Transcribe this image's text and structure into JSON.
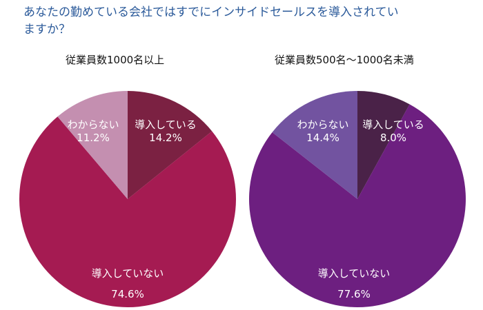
{
  "title": "あなたの勤めている会社ではすでにインサイドセールスを導入されていますか？",
  "chart_data": [
    {
      "type": "pie",
      "title": "従業員数1000名以上",
      "slices": [
        {
          "label": "導入している",
          "value": 14.2,
          "display": "14.2%",
          "color": "#7b2142"
        },
        {
          "label": "導入していない",
          "value": 74.6,
          "display": "74.6%",
          "color": "#a51b52"
        },
        {
          "label": "わからない",
          "value": 11.2,
          "display": "11.2%",
          "color": "#c48fb0"
        }
      ]
    },
    {
      "type": "pie",
      "title": "従業員数500名～1000名未満",
      "slices": [
        {
          "label": "導入している",
          "value": 8.0,
          "display": "8.0%",
          "color": "#4a2248"
        },
        {
          "label": "導入していない",
          "value": 77.6,
          "display": "77.6%",
          "color": "#6d1f80"
        },
        {
          "label": "わからない",
          "value": 14.4,
          "display": "14.4%",
          "color": "#7253a0"
        }
      ]
    }
  ]
}
